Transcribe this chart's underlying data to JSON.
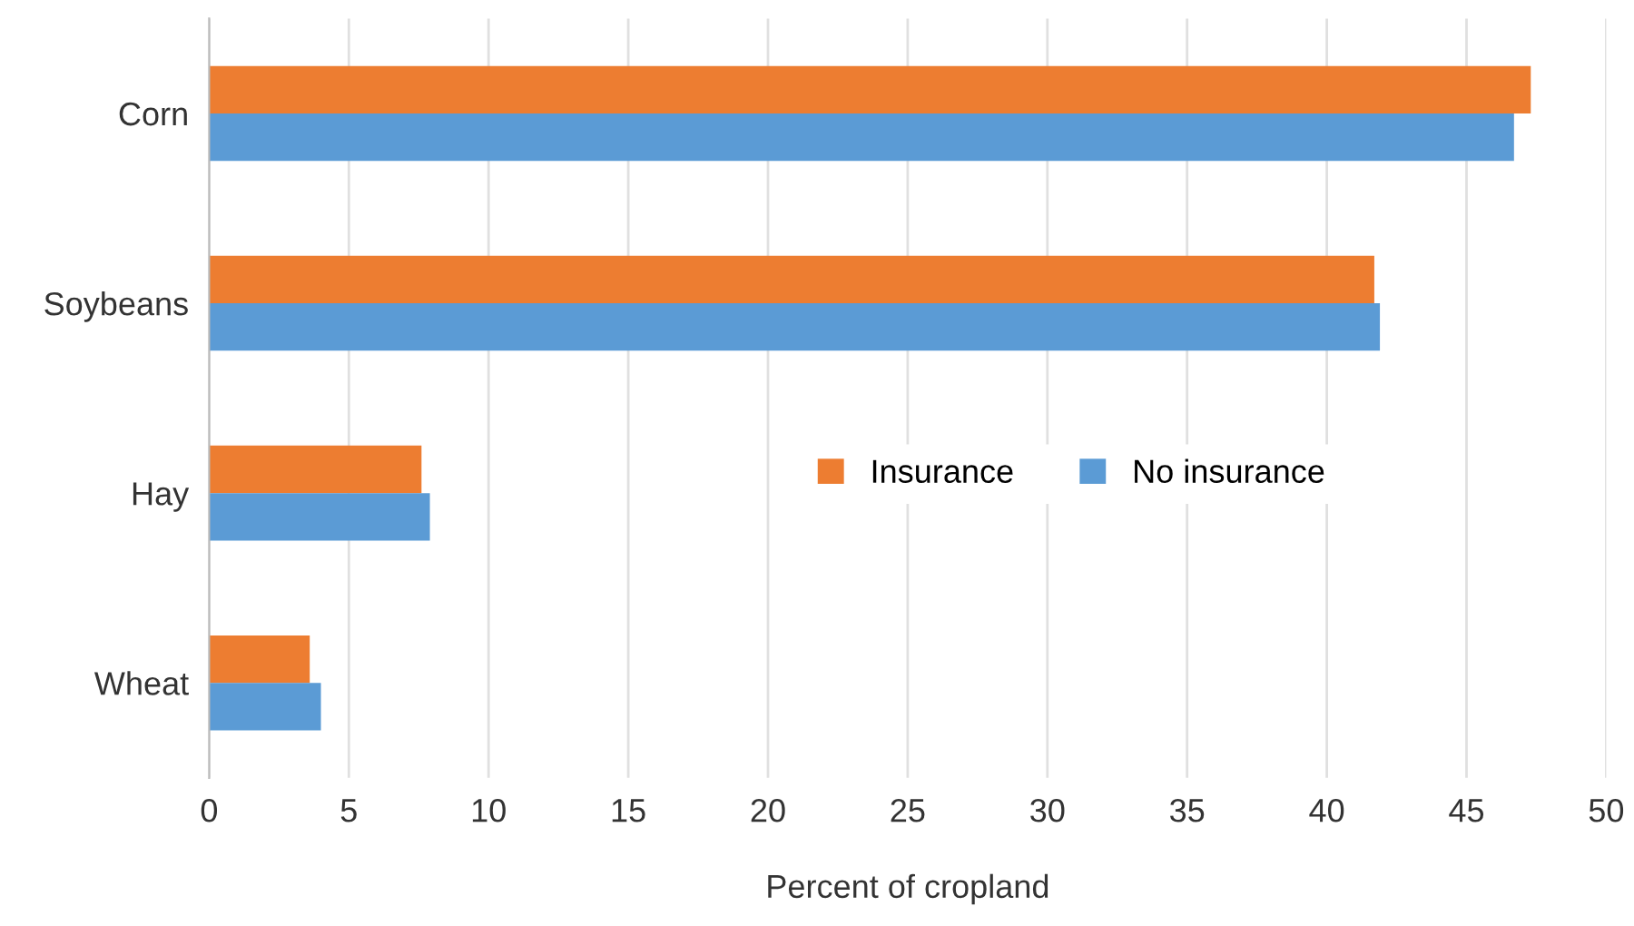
{
  "chart_data": {
    "type": "bar",
    "orientation": "horizontal",
    "xlabel": "Percent of cropland",
    "categories": [
      "Corn",
      "Soybeans",
      "Hay",
      "Wheat"
    ],
    "series": [
      {
        "name": "Insurance",
        "color": "#ed7d31",
        "values": [
          47.3,
          41.7,
          7.6,
          3.6
        ]
      },
      {
        "name": "No insurance",
        "color": "#5b9bd5",
        "values": [
          46.7,
          41.9,
          7.9,
          4.0
        ]
      }
    ],
    "xlim": [
      0,
      50
    ],
    "xticks": [
      0,
      5,
      10,
      15,
      20,
      25,
      30,
      35,
      40,
      45,
      50
    ],
    "grid": "x",
    "legend": "center right"
  }
}
